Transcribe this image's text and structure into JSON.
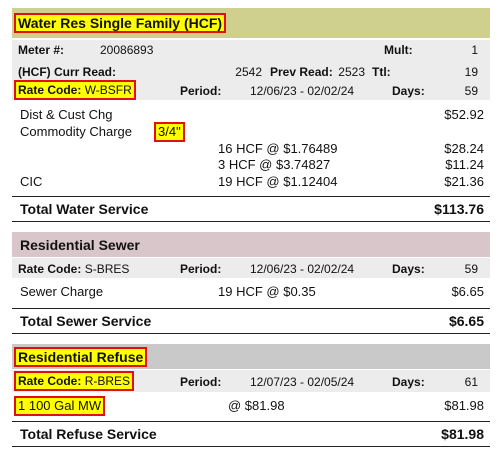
{
  "water": {
    "title": "Water Res Single Family (HCF)",
    "meter_label": "Meter #:",
    "meter": "20086893",
    "mult_label": "Mult:",
    "mult": "1",
    "curr_label": "(HCF) Curr Read:",
    "curr": "2542",
    "prev_label": "Prev Read:",
    "prev": "2523",
    "ttl_label": "Ttl:",
    "ttl": "19",
    "rate_label": "Rate Code:",
    "rate": "W-BSFR",
    "period_label": "Period:",
    "period": "12/06/23 - 02/02/24",
    "days_label": "Days:",
    "days": "59",
    "items": [
      {
        "desc": "Dist & Cust Chg",
        "amount": "$52.92"
      },
      {
        "desc": "Commodity Charge",
        "note": "3/4\""
      },
      {
        "detail": "16 HCF @ $1.76489",
        "amount": "$28.24"
      },
      {
        "detail": "3 HCF @ $3.74827",
        "amount": "$11.24"
      },
      {
        "desc": "CIC",
        "detail": "19 HCF @ $1.12404",
        "amount": "$21.36"
      }
    ],
    "total_label": "Total Water Service",
    "total": "$113.76"
  },
  "sewer": {
    "title": "Residential Sewer",
    "rate_label": "Rate Code:",
    "rate": "S-BRES",
    "period_label": "Period:",
    "period": "12/06/23 - 02/02/24",
    "days_label": "Days:",
    "days": "59",
    "items": [
      {
        "desc": "Sewer Charge",
        "detail": "19 HCF @ $0.35",
        "amount": "$6.65"
      }
    ],
    "total_label": "Total Sewer Service",
    "total": "$6.65"
  },
  "refuse": {
    "title": "Residential Refuse",
    "rate_label": "Rate Code:",
    "rate": "R-BRES",
    "period_label": "Period:",
    "period": "12/07/23 - 02/05/24",
    "days_label": "Days:",
    "days": "61",
    "items": [
      {
        "desc": "1 100 Gal MW",
        "detail": "@ $81.98",
        "amount": "$81.98"
      }
    ],
    "total_label": "Total Refuse Service",
    "total": "$81.98"
  }
}
